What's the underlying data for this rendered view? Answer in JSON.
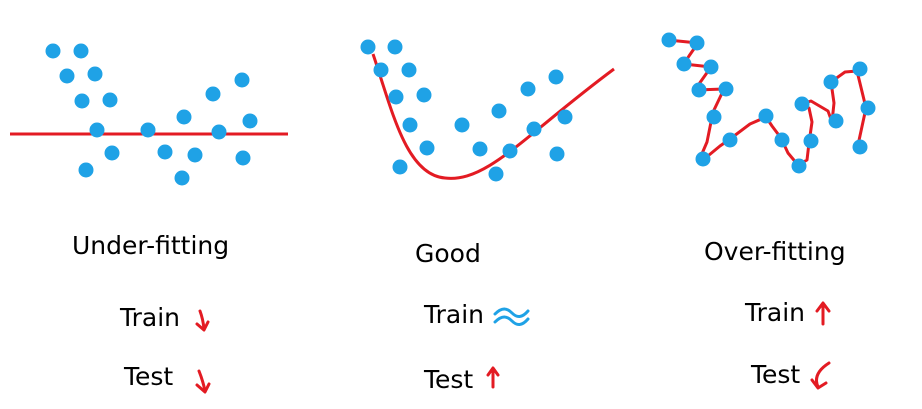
{
  "colors": {
    "point": "#1fa2e6",
    "curve": "#e31b23",
    "arrow_red": "#e31b23",
    "arrow_blue": "#1fa2e6",
    "text": "#000000"
  },
  "panels": [
    {
      "key": "under",
      "title": "Under-fitting",
      "train_label": "Train",
      "test_label": "Test",
      "train_indicator": "down-arrow-icon",
      "test_indicator": "down-arrow-icon"
    },
    {
      "key": "good",
      "title": "Good",
      "train_label": "Train",
      "test_label": "Test",
      "train_indicator": "approx-equal-icon",
      "test_indicator": "up-arrow-icon"
    },
    {
      "key": "over",
      "title": "Over-fitting",
      "train_label": "Train",
      "test_label": "Test",
      "train_indicator": "up-arrow-icon",
      "test_indicator": "curved-down-arrow-icon"
    }
  ]
}
